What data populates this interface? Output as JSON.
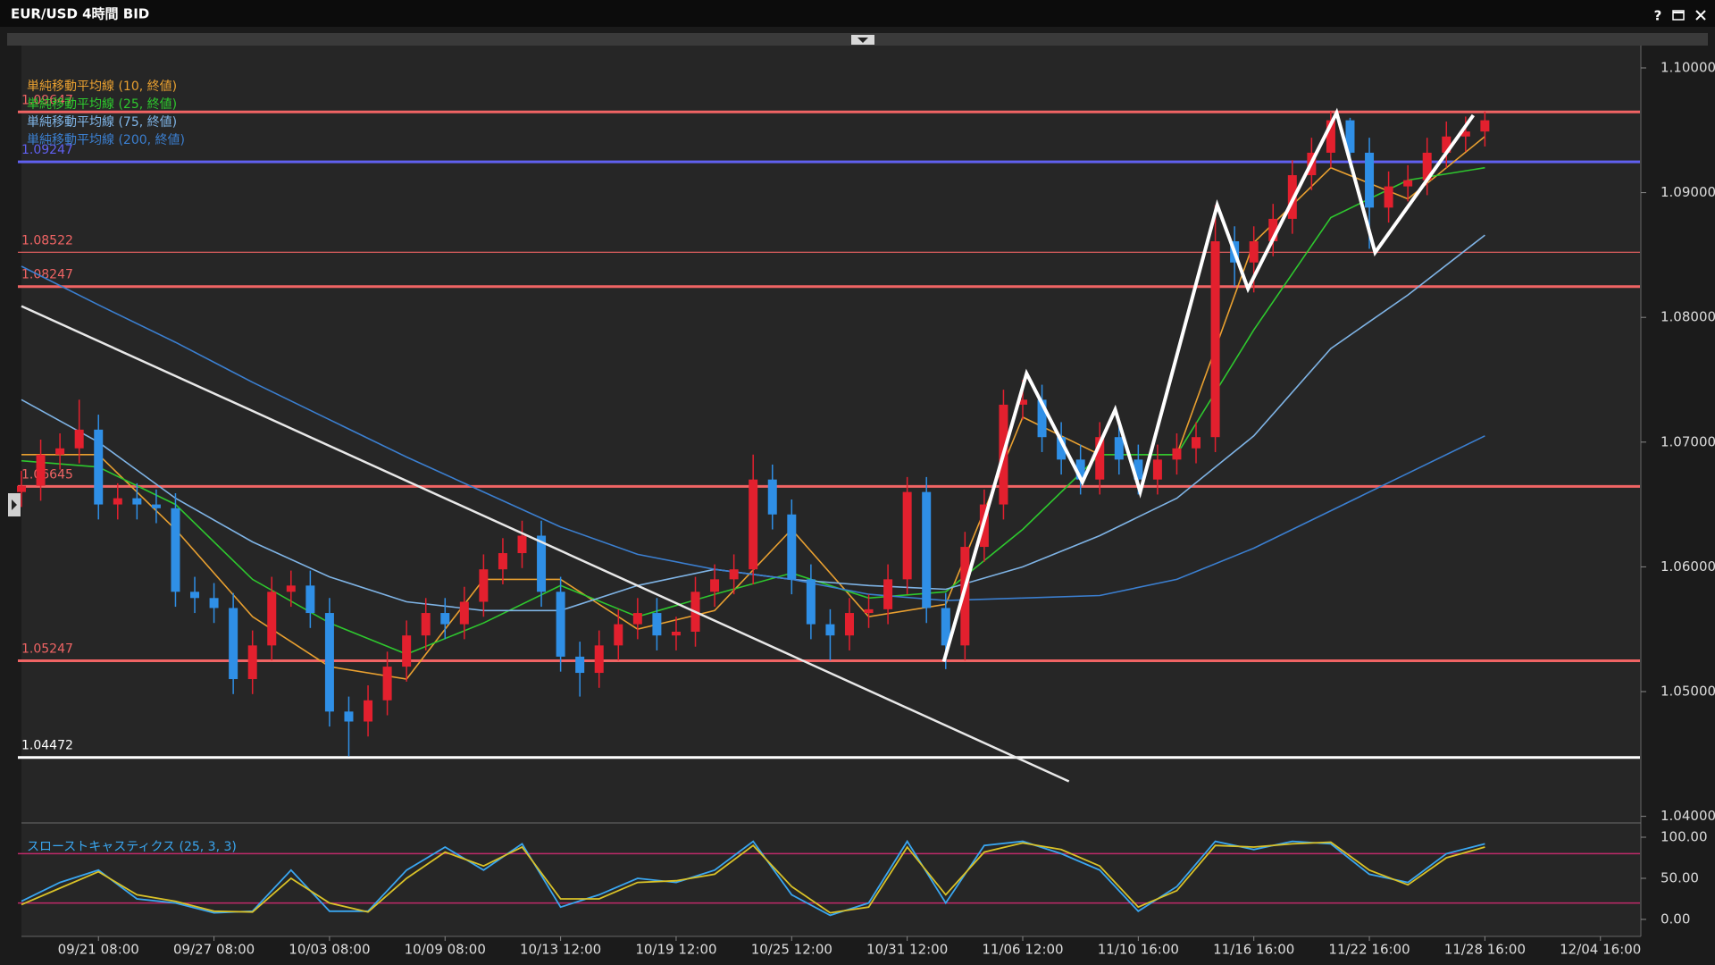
{
  "window": {
    "title": "EUR/USD 4時間 BID",
    "help": "?"
  },
  "chart_data": [
    {
      "type": "candlestick",
      "up_color": "#e3202e",
      "down_color": "#2f8fe6",
      "x": [
        0,
        1,
        2,
        3,
        4,
        5,
        6,
        7,
        8,
        9,
        10,
        11,
        12,
        13,
        14,
        15,
        16,
        17,
        18,
        19,
        20,
        21,
        22,
        23,
        24,
        25,
        26,
        27,
        28,
        29,
        30,
        31,
        32,
        33,
        34,
        35,
        36,
        37,
        38,
        39,
        40,
        41,
        42,
        43,
        44,
        45,
        46,
        47,
        48,
        49,
        50,
        51,
        52,
        53,
        54,
        55,
        56,
        57,
        58,
        59,
        60,
        61,
        62,
        63,
        64,
        65,
        66,
        67,
        68,
        69,
        70,
        71,
        72,
        73,
        74,
        75,
        76
      ],
      "open": [
        1.066,
        1.0665,
        1.069,
        1.0695,
        1.071,
        1.065,
        1.0655,
        1.065,
        1.0647,
        1.058,
        1.0575,
        1.0567,
        1.051,
        1.0537,
        1.058,
        1.0585,
        1.0563,
        1.0484,
        1.0476,
        1.0493,
        1.052,
        1.0545,
        1.0563,
        1.0554,
        1.0572,
        1.0598,
        1.0611,
        1.0625,
        1.058,
        1.0528,
        1.0515,
        1.0537,
        1.0554,
        1.0563,
        1.0545,
        1.0548,
        1.058,
        1.059,
        1.0598,
        1.067,
        1.0642,
        1.059,
        1.0554,
        1.0545,
        1.0563,
        1.0566,
        1.059,
        1.066,
        1.0567,
        1.0537,
        1.0616,
        1.065,
        1.073,
        1.0734,
        1.0704,
        1.0686,
        1.067,
        1.0704,
        1.0686,
        1.067,
        1.0686,
        1.0695,
        1.0704,
        1.0861,
        1.0844,
        1.0861,
        1.0879,
        1.0914,
        1.0932,
        1.0958,
        1.0932,
        1.0888,
        1.0905,
        1.091,
        1.0932,
        1.0945,
        1.0949
      ],
      "high": [
        1.0677,
        1.0702,
        1.0707,
        1.0734,
        1.0722,
        1.0667,
        1.0667,
        1.0662,
        1.0659,
        1.0592,
        1.0587,
        1.0579,
        1.0549,
        1.0592,
        1.0597,
        1.0597,
        1.0575,
        1.0496,
        1.0505,
        1.0532,
        1.0557,
        1.0575,
        1.0575,
        1.0584,
        1.061,
        1.0623,
        1.0637,
        1.0637,
        1.0592,
        1.054,
        1.0549,
        1.0566,
        1.0575,
        1.0575,
        1.056,
        1.0592,
        1.0602,
        1.061,
        1.069,
        1.0682,
        1.0654,
        1.0602,
        1.0566,
        1.0575,
        1.0578,
        1.0602,
        1.0672,
        1.0672,
        1.0579,
        1.0628,
        1.0662,
        1.0742,
        1.075,
        1.0746,
        1.0716,
        1.0698,
        1.0716,
        1.0716,
        1.0698,
        1.0698,
        1.0707,
        1.0716,
        1.089,
        1.0873,
        1.0873,
        1.0891,
        1.0926,
        1.0944,
        1.0965,
        1.096,
        1.0944,
        1.0917,
        1.0922,
        1.0944,
        1.0957,
        1.0961,
        1.0965
      ],
      "low": [
        1.0648,
        1.0653,
        1.0678,
        1.0683,
        1.0638,
        1.0638,
        1.0638,
        1.0635,
        1.0568,
        1.0563,
        1.0555,
        1.0498,
        1.0498,
        1.0525,
        1.0568,
        1.0551,
        1.0472,
        1.0448,
        1.0464,
        1.0481,
        1.0508,
        1.0533,
        1.0542,
        1.0542,
        1.056,
        1.0586,
        1.0599,
        1.0568,
        1.0516,
        1.0496,
        1.0503,
        1.0525,
        1.0542,
        1.0533,
        1.0533,
        1.0536,
        1.0568,
        1.0578,
        1.0586,
        1.063,
        1.0578,
        1.0542,
        1.0525,
        1.0533,
        1.0551,
        1.0554,
        1.0578,
        1.0555,
        1.0518,
        1.0525,
        1.0604,
        1.0638,
        1.0718,
        1.0692,
        1.0674,
        1.0658,
        1.0658,
        1.0674,
        1.0658,
        1.0658,
        1.0674,
        1.0683,
        1.0692,
        1.0825,
        1.082,
        1.0849,
        1.0867,
        1.0902,
        1.092,
        1.092,
        1.0855,
        1.0876,
        1.0893,
        1.0898,
        1.092,
        1.0933,
        1.0937
      ],
      "close": [
        1.0665,
        1.069,
        1.0695,
        1.071,
        1.065,
        1.0655,
        1.065,
        1.0647,
        1.058,
        1.0575,
        1.0567,
        1.051,
        1.0537,
        1.058,
        1.0585,
        1.0563,
        1.0484,
        1.0476,
        1.0493,
        1.052,
        1.0545,
        1.0563,
        1.0554,
        1.0572,
        1.0598,
        1.0611,
        1.0625,
        1.058,
        1.0528,
        1.0515,
        1.0537,
        1.0554,
        1.0563,
        1.0545,
        1.0548,
        1.058,
        1.059,
        1.0598,
        1.067,
        1.0642,
        1.059,
        1.0554,
        1.0545,
        1.0563,
        1.0566,
        1.059,
        1.066,
        1.0567,
        1.0537,
        1.0616,
        1.065,
        1.073,
        1.0734,
        1.0704,
        1.0686,
        1.067,
        1.0704,
        1.0686,
        1.067,
        1.0686,
        1.0695,
        1.0704,
        1.0861,
        1.0844,
        1.0861,
        1.0879,
        1.0914,
        1.0932,
        1.0958,
        1.0932,
        1.0888,
        1.0905,
        1.091,
        1.0932,
        1.0945,
        1.0949,
        1.0958
      ],
      "series": [
        {
          "name": "単純移動平均線 (10, 終値)",
          "color": "#e9a030",
          "x": [
            0,
            4,
            8,
            12,
            16,
            20,
            24,
            28,
            32,
            36,
            40,
            44,
            48,
            52,
            56,
            60,
            64,
            68,
            72,
            76
          ],
          "values": [
            1.069,
            1.069,
            1.063,
            1.056,
            1.052,
            1.051,
            1.059,
            1.059,
            1.055,
            1.0565,
            1.063,
            1.056,
            1.057,
            1.072,
            1.069,
            1.069,
            1.086,
            1.092,
            1.0895,
            1.0945
          ]
        },
        {
          "name": "単純移動平均線 (25, 終値)",
          "color": "#2ec82e",
          "x": [
            0,
            4,
            8,
            12,
            16,
            20,
            24,
            28,
            32,
            36,
            40,
            44,
            48,
            52,
            56,
            60,
            64,
            68,
            72,
            76
          ],
          "values": [
            1.0685,
            1.068,
            1.065,
            1.059,
            1.0555,
            1.053,
            1.0555,
            1.0585,
            1.056,
            1.0578,
            1.0595,
            1.0575,
            1.058,
            1.063,
            1.069,
            1.069,
            1.079,
            1.088,
            1.091,
            1.092
          ]
        },
        {
          "name": "単純移動平均線 (75, 終値)",
          "color": "#7fb4e6",
          "x": [
            0,
            4,
            8,
            12,
            16,
            20,
            24,
            28,
            32,
            36,
            40,
            44,
            48,
            52,
            56,
            60,
            64,
            68,
            72,
            76
          ],
          "values": [
            1.0734,
            1.07,
            1.0655,
            1.062,
            1.0592,
            1.0572,
            1.0565,
            1.0565,
            1.0585,
            1.0598,
            1.059,
            1.0585,
            1.0582,
            1.06,
            1.0625,
            1.0655,
            1.0705,
            1.0775,
            1.0818,
            1.0866
          ]
        },
        {
          "name": "単純移動平均線 (200, 終値)",
          "color": "#3b7fd0",
          "x": [
            0,
            4,
            8,
            12,
            16,
            20,
            24,
            28,
            32,
            36,
            40,
            44,
            48,
            52,
            56,
            60,
            64,
            68,
            72,
            76
          ],
          "values": [
            1.0841,
            1.081,
            1.078,
            1.0748,
            1.0718,
            1.0688,
            1.066,
            1.0632,
            1.061,
            1.0598,
            1.059,
            1.0578,
            1.0573,
            1.0575,
            1.0577,
            1.059,
            1.0615,
            1.0645,
            1.0675,
            1.0705
          ]
        }
      ],
      "levels": [
        {
          "value": 1.09647,
          "label": "1.09647",
          "color": "#f06464"
        },
        {
          "value": 1.09247,
          "label": "1.09247",
          "color": "#6060f0"
        },
        {
          "value": 1.08522,
          "label": "1.08522",
          "color": "#f06464",
          "thin": true
        },
        {
          "value": 1.08247,
          "label": "1.08247",
          "color": "#f06464"
        },
        {
          "value": 1.06645,
          "label": "1.06645",
          "color": "#f06464"
        },
        {
          "value": 1.05247,
          "label": "1.05247",
          "color": "#f06464"
        },
        {
          "value": 1.04472,
          "label": "1.04472",
          "color": "#ffffff"
        }
      ],
      "drawings": [
        {
          "color": "#e8e8e8",
          "x": [
            0,
            54.4
          ],
          "values": [
            1.0809,
            1.0428
          ]
        },
        {
          "color": "#ffffff",
          "x": [
            47.9,
            52.2,
            55.1,
            56.8,
            58.1,
            62.1,
            63.7,
            68.3,
            70.3,
            75.4
          ],
          "values": [
            1.0524,
            1.0755,
            1.0668,
            1.0726,
            1.066,
            1.089,
            1.0823,
            1.0964,
            1.0852,
            1.0962
          ]
        }
      ],
      "xlim": [
        0,
        84.1
      ],
      "xticks": [
        {
          "value": 4,
          "label": "09/21 08:00"
        },
        {
          "value": 10,
          "label": "09/27 08:00"
        },
        {
          "value": 16,
          "label": "10/03 08:00"
        },
        {
          "value": 22,
          "label": "10/09 08:00"
        },
        {
          "value": 28,
          "label": "10/13 12:00"
        },
        {
          "value": 34,
          "label": "10/19 12:00"
        },
        {
          "value": 40,
          "label": "10/25 12:00"
        },
        {
          "value": 46,
          "label": "10/31 12:00"
        },
        {
          "value": 52,
          "label": "11/06 12:00"
        },
        {
          "value": 58,
          "label": "11/10 16:00"
        },
        {
          "value": 64,
          "label": "11/16 16:00"
        },
        {
          "value": 70,
          "label": "11/22 16:00"
        },
        {
          "value": 76,
          "label": "11/28 16:00"
        },
        {
          "value": 82,
          "label": "12/04 16:00"
        }
      ],
      "ylim": [
        1.03947,
        1.10179
      ],
      "yticks": [
        {
          "value": 1.04,
          "label": "1.04000"
        },
        {
          "value": 1.05,
          "label": "1.05000"
        },
        {
          "value": 1.06,
          "label": "1.06000"
        },
        {
          "value": 1.07,
          "label": "1.07000"
        },
        {
          "value": 1.08,
          "label": "1.08000"
        },
        {
          "value": 1.09,
          "label": "1.09000"
        },
        {
          "value": 1.1,
          "label": "1.10000"
        }
      ]
    },
    {
      "type": "line",
      "title": "スローストキャスティクス (25, 3, 3)",
      "series": [
        {
          "color": "#3aa6f0",
          "x": [
            0,
            2,
            4,
            6,
            8,
            10,
            12,
            14,
            16,
            18,
            20,
            22,
            24,
            26,
            28,
            30,
            32,
            34,
            36,
            38,
            40,
            42,
            44,
            46,
            48,
            50,
            52,
            54,
            56,
            58,
            60,
            62,
            64,
            66,
            68,
            70,
            72,
            74,
            76
          ],
          "values": [
            22,
            45,
            60,
            25,
            20,
            8,
            10,
            60,
            10,
            10,
            60,
            88,
            60,
            92,
            15,
            30,
            50,
            45,
            60,
            95,
            30,
            5,
            20,
            95,
            20,
            90,
            95,
            80,
            60,
            10,
            40,
            95,
            85,
            95,
            92,
            55,
            45,
            80,
            92
          ]
        },
        {
          "color": "#d9c228",
          "x": [
            0,
            2,
            4,
            6,
            8,
            10,
            12,
            14,
            16,
            18,
            20,
            22,
            24,
            26,
            28,
            30,
            32,
            34,
            36,
            38,
            40,
            42,
            44,
            46,
            48,
            50,
            52,
            54,
            56,
            58,
            60,
            62,
            64,
            66,
            68,
            70,
            72,
            74,
            76
          ],
          "values": [
            18,
            38,
            58,
            30,
            22,
            10,
            9,
            50,
            20,
            9,
            50,
            82,
            65,
            88,
            25,
            25,
            45,
            47,
            55,
            90,
            40,
            8,
            15,
            88,
            30,
            82,
            93,
            85,
            65,
            15,
            35,
            90,
            88,
            92,
            94,
            60,
            42,
            75,
            88
          ]
        }
      ],
      "levels": [
        {
          "value": 80,
          "color": "#c02a6a"
        },
        {
          "value": 20,
          "color": "#c02a6a"
        }
      ],
      "xlim": [
        0,
        84.1
      ],
      "ylim": [
        -20.7,
        117.4
      ],
      "yticks": [
        {
          "value": 0,
          "label": "0.00"
        },
        {
          "value": 50,
          "label": "50.00"
        },
        {
          "value": 100,
          "label": "100.00"
        }
      ]
    }
  ]
}
